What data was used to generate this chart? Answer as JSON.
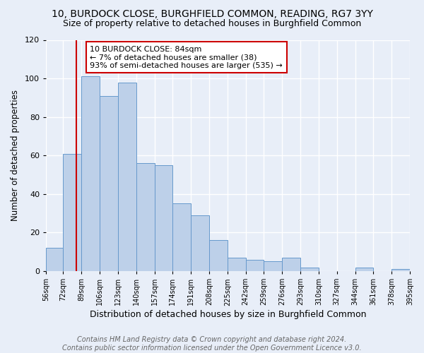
{
  "title": "10, BURDOCK CLOSE, BURGHFIELD COMMON, READING, RG7 3YY",
  "subtitle": "Size of property relative to detached houses in Burghfield Common",
  "xlabel": "Distribution of detached houses by size in Burghfield Common",
  "ylabel": "Number of detached properties",
  "bin_edges": [
    56,
    72,
    89,
    106,
    123,
    140,
    157,
    174,
    191,
    208,
    225,
    242,
    259,
    276,
    293,
    310,
    327,
    344,
    361,
    378,
    395
  ],
  "bar_heights": [
    12,
    61,
    101,
    91,
    98,
    56,
    55,
    35,
    29,
    16,
    7,
    6,
    5,
    7,
    2,
    0,
    0,
    2,
    0,
    1
  ],
  "bar_color": "#bdd0e9",
  "bar_edge_color": "#6699cc",
  "vline_x": 84,
  "vline_color": "#cc0000",
  "annotation_text": "10 BURDOCK CLOSE: 84sqm\n← 7% of detached houses are smaller (38)\n93% of semi-detached houses are larger (535) →",
  "annotation_box_color": "#ffffff",
  "annotation_box_edge_color": "#cc0000",
  "ylim": [
    0,
    120
  ],
  "yticks": [
    0,
    20,
    40,
    60,
    80,
    100,
    120
  ],
  "tick_labels": [
    "56sqm",
    "72sqm",
    "89sqm",
    "106sqm",
    "123sqm",
    "140sqm",
    "157sqm",
    "174sqm",
    "191sqm",
    "208sqm",
    "225sqm",
    "242sqm",
    "259sqm",
    "276sqm",
    "293sqm",
    "310sqm",
    "327sqm",
    "344sqm",
    "361sqm",
    "378sqm",
    "395sqm"
  ],
  "footer_line1": "Contains HM Land Registry data © Crown copyright and database right 2024.",
  "footer_line2": "Contains public sector information licensed under the Open Government Licence v3.0.",
  "bg_color": "#e8eef8",
  "plot_bg_color": "#e8eef8",
  "grid_color": "#ffffff",
  "title_fontsize": 10,
  "subtitle_fontsize": 9,
  "xlabel_fontsize": 9,
  "ylabel_fontsize": 8.5,
  "footer_fontsize": 7,
  "annotation_fontsize": 8,
  "tick_fontsize": 7,
  "ytick_fontsize": 8
}
